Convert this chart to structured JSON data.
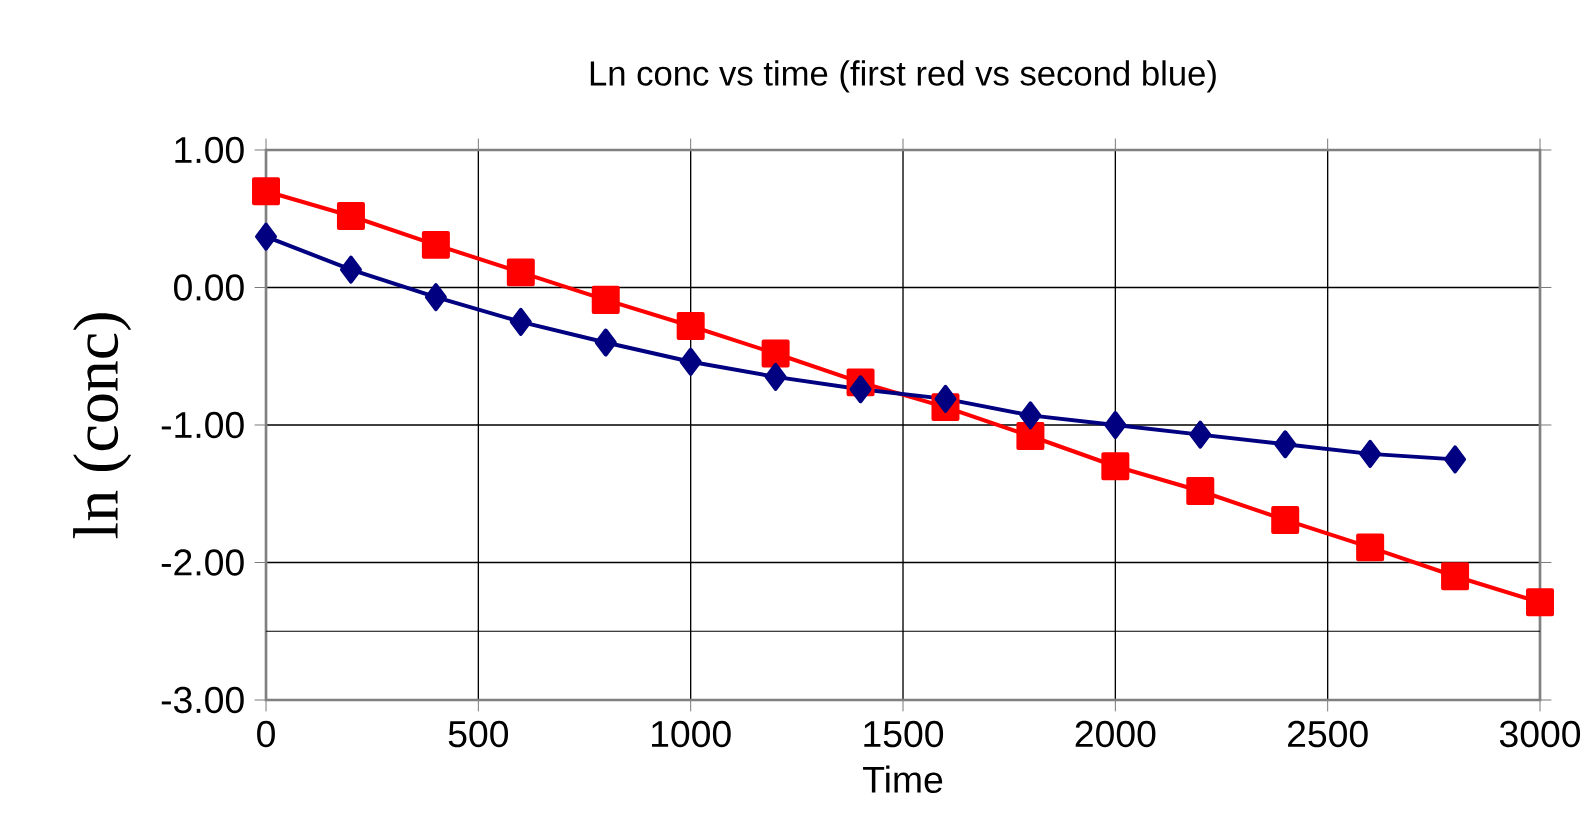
{
  "chart_data": {
    "type": "line",
    "title": "Ln conc vs time (first red vs second blue)",
    "xlabel": "Time",
    "ylabel": "ln (conc)",
    "xlim": [
      0,
      3000
    ],
    "xticks": [
      0,
      500,
      1000,
      1500,
      2000,
      2500,
      3000
    ],
    "ylim": [
      -3,
      1
    ],
    "yticks": [
      {
        "value": 1,
        "label": "1.00"
      },
      {
        "value": 0,
        "label": "0.00"
      },
      {
        "value": -1,
        "label": "-1.00"
      },
      {
        "value": -2,
        "label": "-2.00"
      },
      {
        "value": -3,
        "label": "-3.00"
      }
    ],
    "grid": true,
    "line_style": "solid",
    "ref_lines": [
      {
        "axis": "y",
        "value": -2.5,
        "color": "#000000"
      }
    ],
    "series": [
      {
        "color": "#ff0000",
        "marker": "square",
        "x": [
          0,
          200,
          400,
          600,
          800,
          1000,
          1200,
          1400,
          1600,
          1800,
          2000,
          2200,
          2400,
          2600,
          2800,
          3000
        ],
        "values": [
          0.7,
          0.52,
          0.31,
          0.11,
          -0.09,
          -0.28,
          -0.48,
          -0.69,
          -0.87,
          -1.08,
          -1.3,
          -1.48,
          -1.69,
          -1.89,
          -2.1,
          -2.29
        ]
      },
      {
        "color": "#000080",
        "marker": "diamond",
        "x": [
          0,
          200,
          400,
          600,
          800,
          1000,
          1200,
          1400,
          1600,
          1800,
          2000,
          2200,
          2400,
          2600,
          2800
        ],
        "values": [
          0.37,
          0.13,
          -0.07,
          -0.25,
          -0.4,
          -0.54,
          -0.65,
          -0.74,
          -0.81,
          -0.93,
          -1.0,
          -1.07,
          -1.14,
          -1.21,
          -1.25
        ]
      }
    ]
  }
}
